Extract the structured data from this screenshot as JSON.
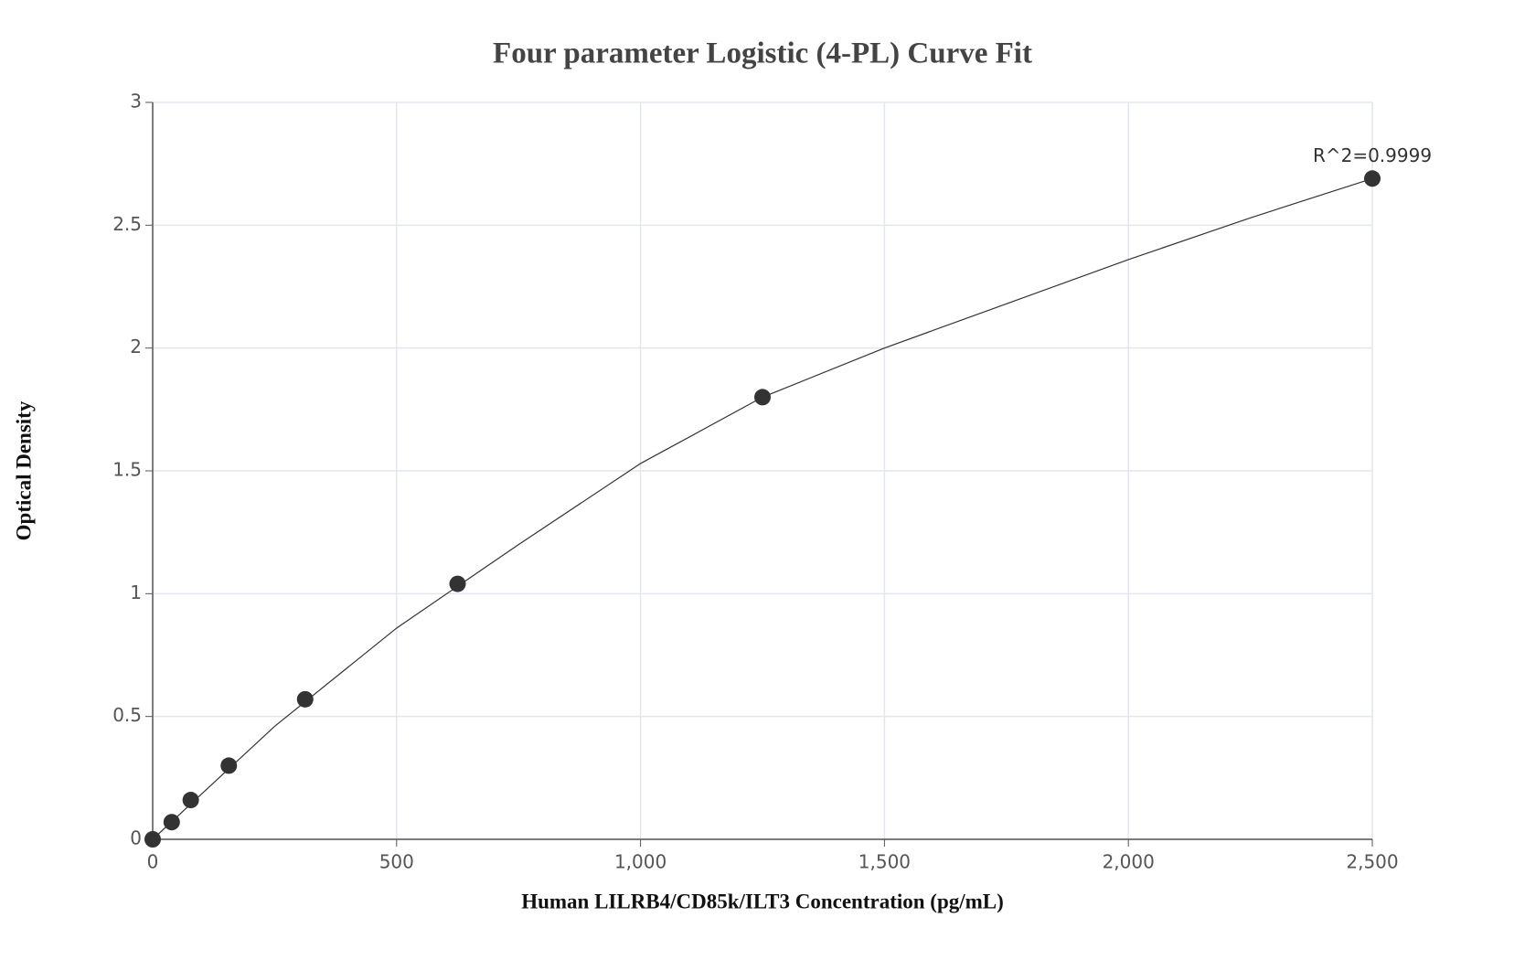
{
  "chart_data": {
    "type": "scatter",
    "title": "Four parameter Logistic (4-PL) Curve Fit",
    "x_label": "Human LILRB4/CD85k/ILT3 Concentration (pg/mL)",
    "y_label": "Optical Density",
    "x": [
      0,
      39,
      78,
      156,
      312.5,
      625,
      1250,
      2500
    ],
    "values": [
      0,
      0.07,
      0.16,
      0.3,
      0.57,
      1.04,
      1.8,
      2.69
    ],
    "color": "#333333",
    "curve": {
      "x": [
        0,
        250,
        500,
        750,
        1000,
        1250,
        1500,
        1750,
        2000,
        2250,
        2500
      ],
      "values": [
        0,
        0.46,
        0.86,
        1.2,
        1.53,
        1.8,
        2.0,
        2.18,
        2.36,
        2.53,
        2.69
      ],
      "color": "#333333"
    },
    "annotation": "R^2=0.9999",
    "xlim": [
      0,
      2500
    ],
    "ylim": [
      0,
      3
    ],
    "xticks": [
      0,
      500,
      {
        "value": 1000,
        "label": "1,000"
      },
      {
        "value": 1500,
        "label": "1,500"
      },
      {
        "value": 2000,
        "label": "2,000"
      },
      {
        "value": 2500,
        "label": "2,500"
      }
    ],
    "yticks": [
      0,
      0.5,
      1,
      1.5,
      2,
      2.5,
      3
    ],
    "grid": true
  }
}
